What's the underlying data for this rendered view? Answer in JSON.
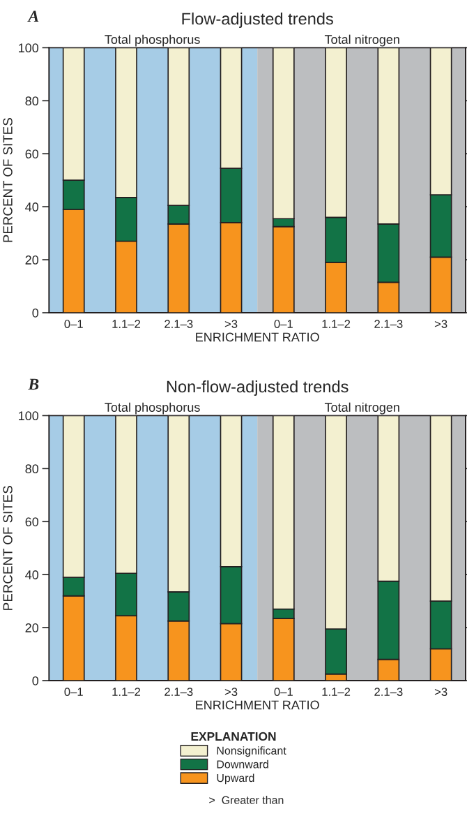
{
  "chart_data": [
    {
      "type": "bar",
      "stacked": true,
      "title": "Flow-adjusted trends",
      "xlabel": "ENRICHMENT RATIO",
      "ylabel": "PERCENT OF SITES",
      "annotations": [
        "A",
        "Total phosphorus",
        "Total nitrogen"
      ],
      "categories": [
        "0–1",
        "1.1–2",
        "2.1–3",
        ">3",
        "0–1",
        "1.1–2",
        "2.1–3",
        ">3"
      ],
      "series": [
        {
          "color": "#f7941e",
          "values": [
            39,
            27,
            33.5,
            34,
            32.5,
            19,
            11.5,
            21
          ]
        },
        {
          "color": "#127346",
          "values": [
            11,
            16.5,
            7,
            20.5,
            3,
            17,
            22,
            23.5
          ]
        },
        {
          "color": "#f3f0d0",
          "values": [
            50,
            56.5,
            59.5,
            45.5,
            64.5,
            64,
            66.5,
            55.5
          ]
        }
      ],
      "ylim": [
        0,
        100
      ],
      "yticks": [
        0,
        20,
        40,
        60,
        80,
        100
      ],
      "grid": false
    },
    {
      "type": "bar",
      "stacked": true,
      "title": "Non-flow-adjusted trends",
      "xlabel": "ENRICHMENT RATIO",
      "ylabel": "PERCENT OF SITES",
      "annotations": [
        "B",
        "Total phosphorus",
        "Total nitrogen",
        ">  Greater than"
      ],
      "categories": [
        "0–1",
        "1.1–2",
        "2.1–3",
        ">3",
        "0–1",
        "1.1–2",
        "2.1–3",
        ">3"
      ],
      "series": [
        {
          "name": "Upward",
          "color": "#f7941e",
          "values": [
            32,
            24.5,
            22.5,
            21.5,
            23.5,
            2.5,
            8,
            12
          ]
        },
        {
          "name": "Downward",
          "color": "#127346",
          "values": [
            7,
            16,
            11,
            21.5,
            3.5,
            17,
            29.5,
            18
          ]
        },
        {
          "name": "Nonsignificant",
          "color": "#f3f0d0",
          "values": [
            61,
            59.5,
            66.5,
            57,
            73,
            80.5,
            62.5,
            70
          ]
        }
      ],
      "ylim": [
        0,
        100
      ],
      "yticks": [
        0,
        20,
        40,
        60,
        80,
        100
      ],
      "grid": false,
      "legend": "bottom",
      "legend_title": "EXPLANATION"
    }
  ]
}
